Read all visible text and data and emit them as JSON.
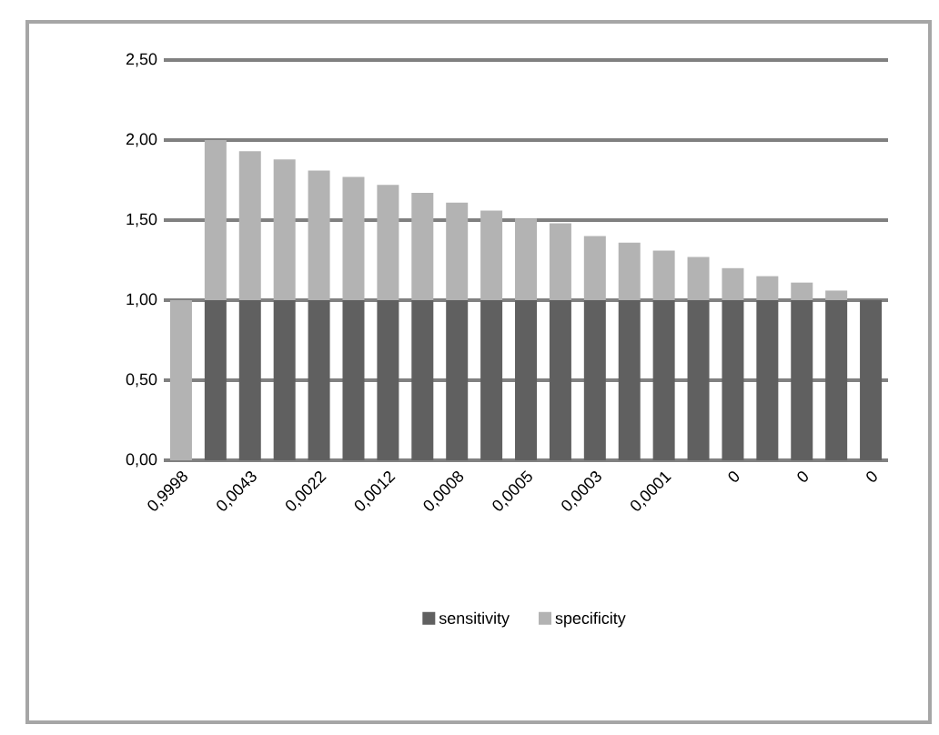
{
  "chart_data": {
    "type": "bar",
    "stacked": true,
    "categories": [
      "0,9998",
      null,
      "0,0043",
      null,
      "0,0022",
      null,
      "0,0012",
      null,
      "0,0008",
      null,
      "0,0005",
      null,
      "0,0003",
      null,
      "0,0001",
      null,
      "0",
      null,
      "0",
      null,
      "0"
    ],
    "series": [
      {
        "name": "sensitivity",
        "color": "#606060",
        "values": [
          0,
          1,
          1,
          1,
          1,
          1,
          1,
          1,
          1,
          1,
          1,
          1,
          1,
          1,
          1,
          1,
          1,
          1,
          1,
          1,
          1
        ]
      },
      {
        "name": "specificity",
        "color": "#b3b3b3",
        "values": [
          1.0,
          1.0,
          0.93,
          0.88,
          0.81,
          0.77,
          0.72,
          0.67,
          0.61,
          0.56,
          0.51,
          0.48,
          0.4,
          0.36,
          0.31,
          0.27,
          0.2,
          0.15,
          0.11,
          0.06,
          0.0
        ]
      }
    ],
    "ylim": [
      0,
      2.5
    ],
    "yticks": [
      {
        "value": 0,
        "label": "0,00"
      },
      {
        "value": 0.5,
        "label": "0,50"
      },
      {
        "value": 1,
        "label": "1,00"
      },
      {
        "value": 1.5,
        "label": "1,50"
      },
      {
        "value": 2,
        "label": "2,00"
      },
      {
        "value": 2.5,
        "label": "2,50"
      }
    ],
    "grid": "y",
    "legend": "bottom"
  }
}
